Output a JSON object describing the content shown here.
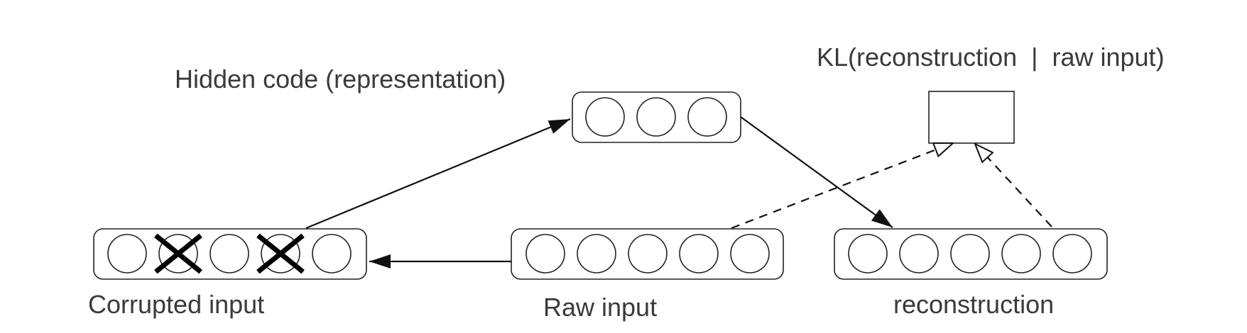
{
  "labels": {
    "hidden": "Hidden code (representation)",
    "kl": "KL(reconstruction  |  raw input)",
    "corrupted": "Corrupted input",
    "raw": "Raw input",
    "reconstruction": "reconstruction"
  },
  "layers": {
    "hidden": {
      "units": 3
    },
    "corrupted": {
      "units": 5,
      "dropped_units": [
        1,
        3
      ]
    },
    "raw": {
      "units": 5
    },
    "reconstruction": {
      "units": 5
    }
  },
  "colors": {
    "text": "#3a3a3a",
    "stroke": "#222222",
    "background": "#ffffff"
  }
}
